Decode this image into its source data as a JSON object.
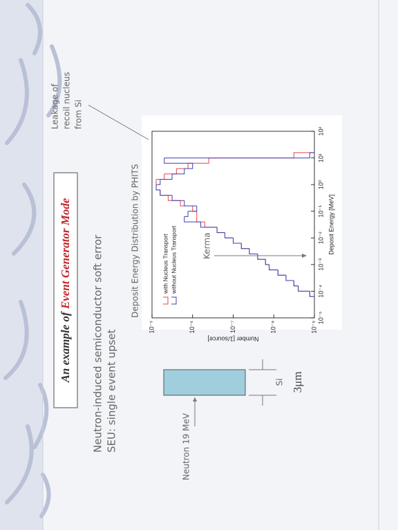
{
  "slide": {
    "title": {
      "prefix": "An example of",
      "highlight": "Event Generator Mode"
    },
    "bullets": [
      "Neutron-induced semiconductor soft error",
      "SEU: single event upset"
    ],
    "diagram": {
      "beam": "Neutron 19 MeV",
      "material": "Si",
      "thickness": "3μm"
    },
    "annotations": {
      "kerma": "Kerma",
      "leakage": [
        "Leakage of",
        "recoil nucleus",
        "from Si"
      ]
    }
  },
  "chart_data": {
    "type": "histogram",
    "title": "Deposit Energy Distribution by PHITS",
    "x_label": "Deposit Energy [MeV]",
    "y_label": "Number [1/source]",
    "log_x": true,
    "log_y": true,
    "bins": [
      6.3e-05,
      0.0001,
      0.000158,
      0.000251,
      0.000398,
      0.000631,
      0.001,
      0.00158,
      0.00251,
      0.00398,
      0.00631,
      0.01,
      0.0158,
      0.0251,
      0.0398,
      0.0631,
      0.1,
      0.158,
      0.251,
      0.398,
      0.631,
      1,
      1.58,
      2.51,
      3.98,
      6.31,
      10,
      15.8
    ],
    "series": [
      {
        "name": "with Nucleus Transport",
        "color": "#e8434a",
        "values": [
          1.3e-09,
          2.5e-09,
          3.2e-09,
          5e-09,
          7.9e-09,
          1.3e-08,
          1.6e-08,
          2.5e-08,
          4e-08,
          6.3e-08,
          1e-07,
          1.6e-07,
          2.5e-07,
          5e-07,
          7.9e-07,
          7.9e-07,
          1e-06,
          2e-06,
          4e-06,
          6.3e-06,
          7.9e-06,
          7.9e-06,
          5e-06,
          2.5e-06,
          1.3e-06,
          4e-07,
          3.2e-09
        ]
      },
      {
        "name": "without Nucleus Transport",
        "color": "#3a3fb0",
        "values": [
          1.3e-09,
          2.5e-09,
          3.2e-09,
          5e-09,
          7.9e-09,
          1.3e-08,
          1.6e-08,
          2.5e-08,
          4e-08,
          6.3e-08,
          1e-07,
          1.6e-07,
          2.5e-07,
          6.3e-07,
          1.6e-06,
          1.3e-06,
          7.9e-07,
          1.6e-06,
          3.2e-06,
          6.3e-06,
          7.9e-06,
          6.3e-06,
          3.2e-06,
          1.6e-06,
          1e-06,
          5e-06,
          1.3e-09
        ]
      }
    ],
    "xlim": [
      1e-05,
      100
    ],
    "ylim": [
      1e-09,
      1e-05
    ],
    "xticks": [
      {
        "value": 1e-05,
        "label": "10⁻⁵"
      },
      {
        "value": 0.0001,
        "label": "10⁻⁴"
      },
      {
        "value": 0.001,
        "label": "10⁻³"
      },
      {
        "value": 0.01,
        "label": "10⁻²"
      },
      {
        "value": 0.1,
        "label": "10⁻¹"
      },
      {
        "value": 1,
        "label": "10⁰"
      },
      {
        "value": 10,
        "label": "10¹"
      },
      {
        "value": 100,
        "label": "10²"
      }
    ],
    "yticks": [
      {
        "value": 1e-09,
        "label": "10⁻⁹"
      },
      {
        "value": 1e-08,
        "label": "10⁻⁸"
      },
      {
        "value": 1e-07,
        "label": "10⁻⁷"
      },
      {
        "value": 1e-06,
        "label": "10⁻⁶"
      },
      {
        "value": 1e-05,
        "label": "10⁻⁵"
      }
    ]
  }
}
